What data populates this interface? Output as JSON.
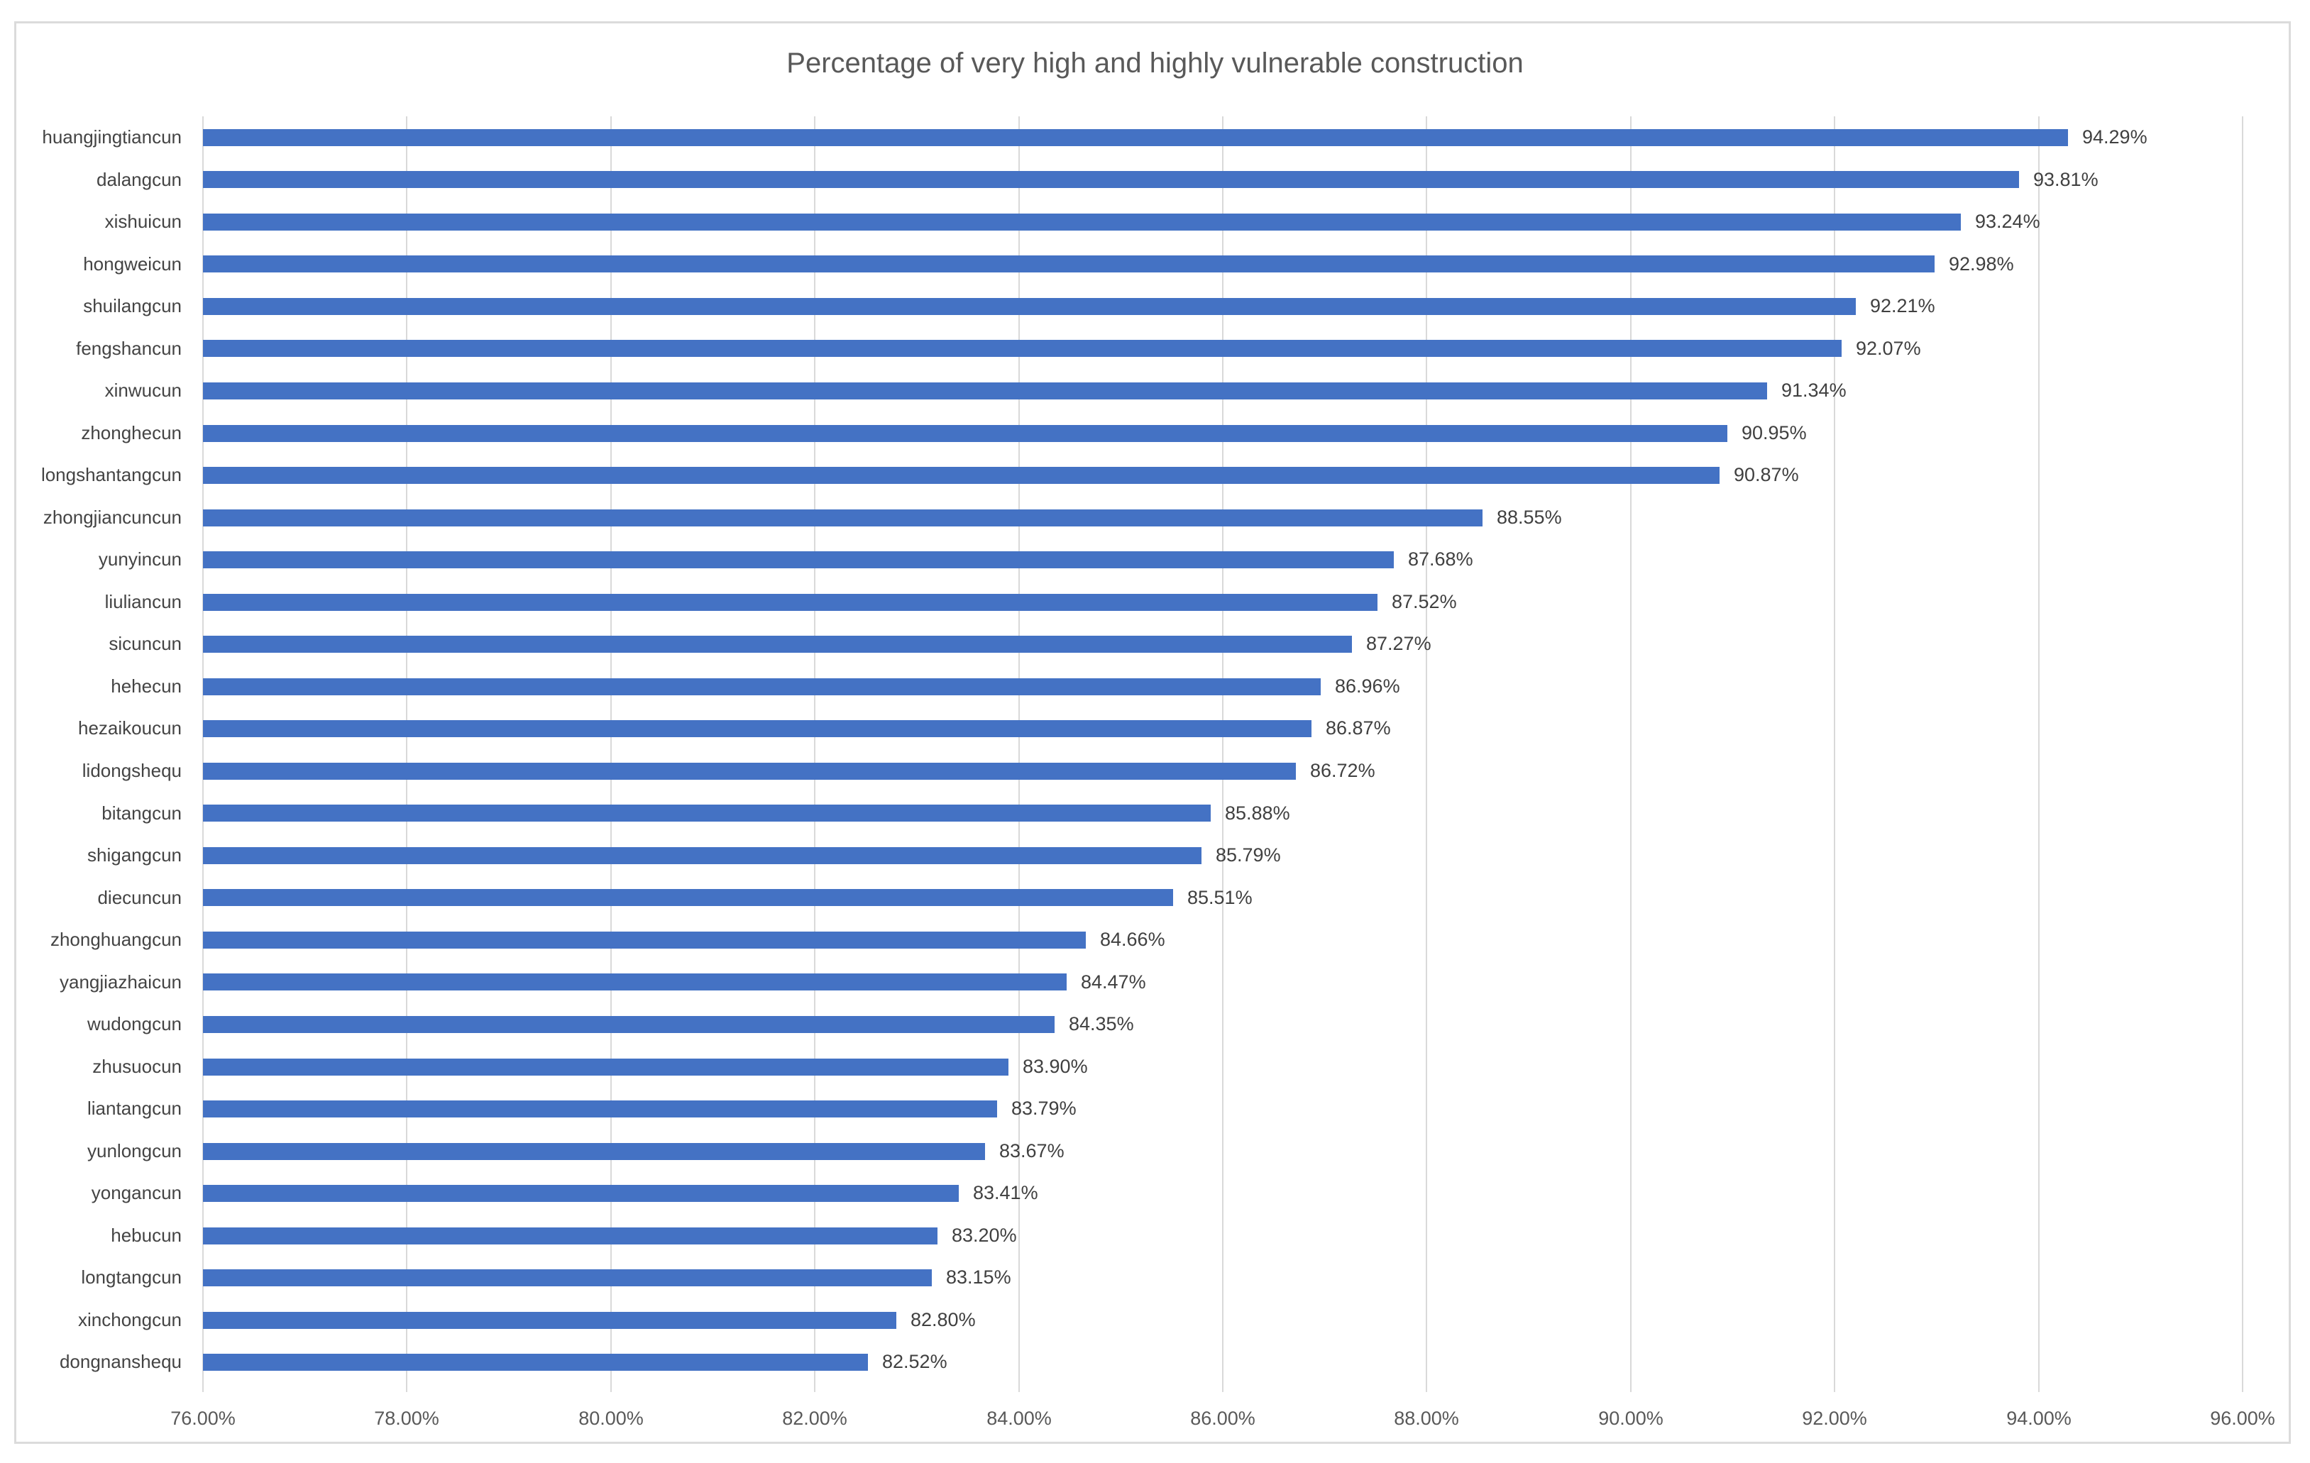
{
  "chart_data": {
    "type": "bar",
    "orientation": "horizontal",
    "title": "Percentage of very high and highly vulnerable construction",
    "categories": [
      "huangjingtiancun",
      "dalangcun",
      "xishuicun",
      "hongweicun",
      "shuilangcun",
      "fengshancun",
      "xinwucun",
      "zhonghecun",
      "longshantangcun",
      "zhongjiancuncun",
      "yunyincun",
      "liuliancun",
      "sicuncun",
      "hehecun",
      "hezaikoucun",
      "lidongshequ",
      "bitangcun",
      "shigangcun",
      "diecuncun",
      "zhonghuangcun",
      "yangjiazhaicun",
      "wudongcun",
      "zhusuocun",
      "liantangcun",
      "yunlongcun",
      "yongancun",
      "hebucun",
      "longtangcun",
      "xinchongcun",
      "dongnanshequ"
    ],
    "values": [
      94.29,
      93.81,
      93.24,
      92.98,
      92.21,
      92.07,
      91.34,
      90.95,
      90.87,
      88.55,
      87.68,
      87.52,
      87.27,
      86.96,
      86.87,
      86.72,
      85.88,
      85.79,
      85.51,
      84.66,
      84.47,
      84.35,
      83.9,
      83.79,
      83.67,
      83.41,
      83.2,
      83.15,
      82.8,
      82.52
    ],
    "data_labels": [
      "94.29%",
      "93.81%",
      "93.24%",
      "92.98%",
      "92.21%",
      "92.07%",
      "91.34%",
      "90.95%",
      "90.87%",
      "88.55%",
      "87.68%",
      "87.52%",
      "87.27%",
      "86.96%",
      "86.87%",
      "86.72%",
      "85.88%",
      "85.79%",
      "85.51%",
      "84.66%",
      "84.47%",
      "84.35%",
      "83.90%",
      "83.79%",
      "83.67%",
      "83.41%",
      "83.20%",
      "83.15%",
      "82.80%",
      "82.52%"
    ],
    "x_ticks": [
      "76.00%",
      "78.00%",
      "80.00%",
      "82.00%",
      "84.00%",
      "86.00%",
      "88.00%",
      "90.00%",
      "92.00%",
      "94.00%",
      "96.00%"
    ],
    "xlim": [
      76,
      96
    ],
    "grid": "vertical-major",
    "legend": "none"
  },
  "colors": {
    "bar": "#4472C4",
    "gridline": "#D9D9D9",
    "frame_border": "#DBDBDB",
    "title_text": "#595959",
    "category_text": "#444444",
    "value_text": "#404040",
    "axis_text": "#595959"
  }
}
